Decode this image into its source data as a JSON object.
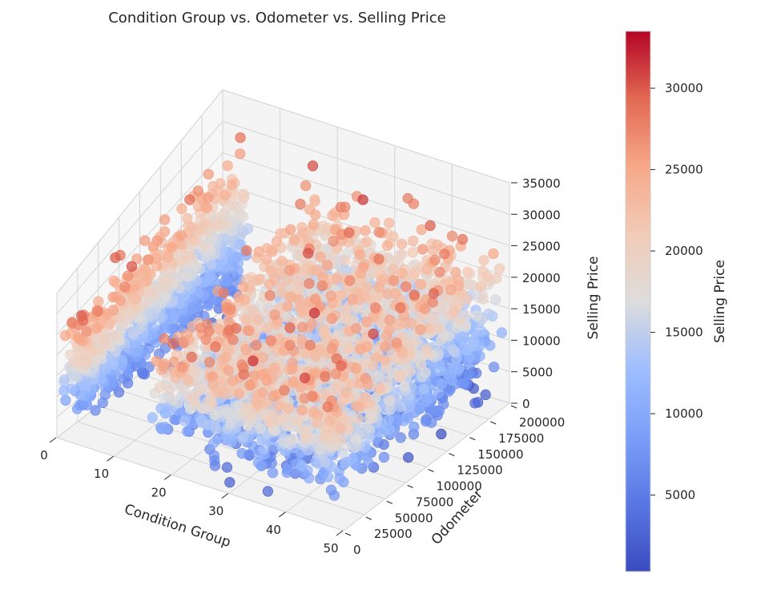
{
  "chart_data": {
    "type": "scatter",
    "projection": "3d",
    "title": "Condition Group vs. Odometer vs. Selling Price",
    "xlabel": "Condition Group",
    "ylabel": "Odometer",
    "zlabel": "Selling Price",
    "xlim": [
      0,
      50
    ],
    "ylim": [
      0,
      200000
    ],
    "zlim": [
      0,
      35000
    ],
    "x_ticks": [
      "0",
      "10",
      "20",
      "30",
      "40",
      "50"
    ],
    "y_ticks": [
      "0",
      "25000",
      "50000",
      "75000",
      "100000",
      "125000",
      "150000",
      "175000",
      "200000"
    ],
    "z_ticks": [
      "0",
      "5000",
      "10000",
      "15000",
      "20000",
      "25000",
      "30000",
      "35000"
    ],
    "colormap": "coolwarm",
    "color_by": "Selling Price",
    "grid": true,
    "colorbar": {
      "label": "Selling Price",
      "range": [
        300,
        33500
      ],
      "ticks": [
        "5000",
        "10000",
        "15000",
        "20000",
        "25000",
        "30000"
      ]
    },
    "clusters": [
      {
        "condition_range": [
          1,
          5
        ],
        "odometer_range": [
          0,
          200000
        ],
        "price_range": [
          1000,
          33000
        ]
      },
      {
        "condition_range": [
          16,
          49
        ],
        "odometer_range": [
          0,
          200000
        ],
        "price_range": [
          300,
          33500
        ]
      }
    ]
  }
}
